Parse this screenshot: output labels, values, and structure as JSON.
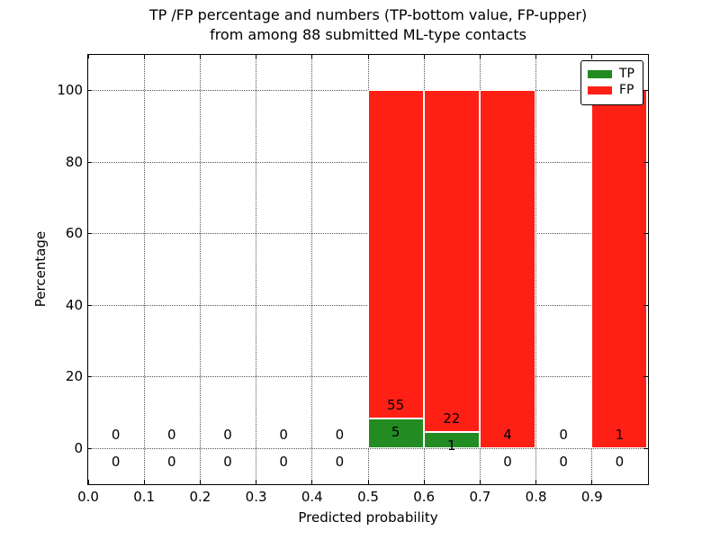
{
  "title": {
    "line1": "TP /FP percentage and numbers (TP-bottom value, FP-upper)",
    "line2": "from among 88 submitted ML-type contacts"
  },
  "legend": {
    "items": [
      {
        "label": "TP",
        "color": "#228b22"
      },
      {
        "label": "FP",
        "color": "#ff2015"
      }
    ]
  },
  "chart_data": {
    "type": "bar",
    "stacked": true,
    "title": "TP /FP percentage and numbers (TP-bottom value, FP-upper) from among 88 submitted ML-type contacts",
    "xlabel": "Predicted probability",
    "ylabel": "Percentage",
    "xlim": [
      0.0,
      1.0
    ],
    "ylim": [
      -10,
      110
    ],
    "xticks": [
      0.0,
      0.1,
      0.2,
      0.3,
      0.4,
      0.5,
      0.6,
      0.7,
      0.8,
      0.9
    ],
    "xtick_labels": [
      "0.0",
      "0.1",
      "0.2",
      "0.3",
      "0.4",
      "0.5",
      "0.6",
      "0.7",
      "0.8",
      "0.9"
    ],
    "yticks": [
      0,
      20,
      40,
      60,
      80,
      100
    ],
    "ytick_labels": [
      "0",
      "20",
      "40",
      "60",
      "80",
      "100"
    ],
    "grid": "dotted",
    "legend_position": "upper right",
    "total_contacts": 88,
    "bin_width": 0.1,
    "bin_starts": [
      0.0,
      0.1,
      0.2,
      0.3,
      0.4,
      0.5,
      0.6,
      0.7,
      0.8,
      0.9
    ],
    "series": [
      {
        "name": "TP",
        "color": "#228b22",
        "counts": [
          0,
          0,
          0,
          0,
          0,
          5,
          1,
          0,
          0,
          0
        ],
        "percent_heights": [
          0,
          0,
          0,
          0,
          0,
          8.33,
          4.35,
          0,
          0,
          0
        ]
      },
      {
        "name": "FP",
        "color": "#ff2015",
        "counts": [
          0,
          0,
          0,
          0,
          0,
          55,
          22,
          4,
          0,
          1
        ],
        "percent_heights": [
          0,
          0,
          0,
          0,
          0,
          91.67,
          95.65,
          100,
          0,
          100
        ]
      }
    ],
    "annotation_rule": "FP count shown just above top of TP segment (or above 0 line); TP count shown just below top of TP segment (or below 0 line)"
  }
}
